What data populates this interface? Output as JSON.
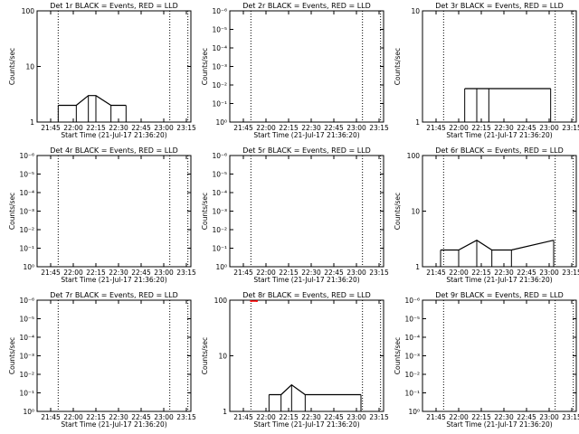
{
  "colors": {
    "events": "#000000",
    "lld": "#ff0000",
    "background": "#ffffff"
  },
  "chart_data": [
    {
      "type": "line",
      "title": "Det 1r BLACK = Events, RED = LLD",
      "xlabel": "Start Time (21-Jul-17 21:36:20)",
      "ylabel": "Counts/sec",
      "yscale": "log",
      "ylim": [
        1,
        100
      ],
      "ytick_labels": [
        "1",
        "10",
        "100"
      ],
      "xtick_labels": [
        "21:45",
        "22:00",
        "22:15",
        "22:30",
        "22:45",
        "23:00",
        "23:15"
      ],
      "xlim": [
        "21:36",
        "23:18"
      ],
      "dotted_vlines": [
        "21:50",
        "23:04",
        "23:16"
      ],
      "events": [
        {
          "x": "21:50",
          "y": 2
        },
        {
          "x": "22:02",
          "y": 2
        },
        {
          "x": "22:10",
          "y": 3
        },
        {
          "x": "22:15",
          "y": 3
        },
        {
          "x": "22:25",
          "y": 2
        },
        {
          "x": "22:35",
          "y": 2
        }
      ],
      "lld": []
    },
    {
      "type": "line",
      "title": "Det 2r BLACK = Events, RED = LLD",
      "xlabel": "Start Time (21-Jul-17 21:36:20)",
      "ylabel": "Counts/sec",
      "yscale": "log",
      "ylim": [
        1,
        1000000
      ],
      "ytick_labels": [
        "10⁰",
        "10⁻¹",
        "10⁻²",
        "10⁻³",
        "10⁻⁴",
        "10⁻⁵",
        "10⁻⁶"
      ],
      "xtick_labels": [
        "21:45",
        "22:00",
        "22:15",
        "22:30",
        "22:45",
        "23:00",
        "23:15"
      ],
      "xlim": [
        "21:36",
        "23:18"
      ],
      "dotted_vlines": [
        "21:50",
        "23:04",
        "23:16"
      ],
      "events": [],
      "lld": []
    },
    {
      "type": "line",
      "title": "Det 3r BLACK = Events, RED = LLD",
      "xlabel": "Start Time (21-Jul-17 21:36:20)",
      "ylabel": "Counts/sec",
      "yscale": "log",
      "ylim": [
        1,
        10
      ],
      "ytick_labels": [
        "1",
        "10"
      ],
      "xtick_labels": [
        "21:45",
        "22:00",
        "22:15",
        "22:30",
        "22:45",
        "23:00",
        "23:15"
      ],
      "xlim": [
        "21:36",
        "23:18"
      ],
      "dotted_vlines": [
        "21:50",
        "23:04",
        "23:16"
      ],
      "events": [
        {
          "x": "22:04",
          "y": 2
        },
        {
          "x": "22:12",
          "y": 2
        },
        {
          "x": "22:20",
          "y": 2
        },
        {
          "x": "23:01",
          "y": 2
        }
      ],
      "lld": []
    },
    {
      "type": "line",
      "title": "Det 4r BLACK = Events, RED = LLD",
      "xlabel": "Start Time (21-Jul-17 21:36:20)",
      "ylabel": "Counts/sec",
      "yscale": "log",
      "ylim": [
        1,
        1000000
      ],
      "ytick_labels": [
        "10⁰",
        "10⁻¹",
        "10⁻²",
        "10⁻³",
        "10⁻⁴",
        "10⁻⁵",
        "10⁻⁶"
      ],
      "xtick_labels": [
        "21:45",
        "22:00",
        "22:15",
        "22:30",
        "22:45",
        "23:00",
        "23:15"
      ],
      "xlim": [
        "21:36",
        "23:18"
      ],
      "dotted_vlines": [
        "21:50",
        "23:04",
        "23:16"
      ],
      "events": [],
      "lld": []
    },
    {
      "type": "line",
      "title": "Det 5r BLACK = Events, RED = LLD",
      "xlabel": "Start Time (21-Jul-17 21:36:20)",
      "ylabel": "Counts/sec",
      "yscale": "log",
      "ylim": [
        1,
        1000000
      ],
      "ytick_labels": [
        "10⁰",
        "10⁻¹",
        "10⁻²",
        "10⁻³",
        "10⁻⁴",
        "10⁻⁵",
        "10⁻⁶"
      ],
      "xtick_labels": [
        "21:45",
        "22:00",
        "22:15",
        "22:30",
        "22:45",
        "23:00",
        "23:15"
      ],
      "xlim": [
        "21:36",
        "23:18"
      ],
      "dotted_vlines": [
        "21:50",
        "23:04",
        "23:16"
      ],
      "events": [],
      "lld": []
    },
    {
      "type": "line",
      "title": "Det 6r BLACK = Events, RED = LLD",
      "xlabel": "Start Time (21-Jul-17 21:36:20)",
      "ylabel": "Counts/sec",
      "yscale": "log",
      "ylim": [
        1,
        100
      ],
      "ytick_labels": [
        "1",
        "10",
        "100"
      ],
      "xtick_labels": [
        "21:45",
        "22:00",
        "22:15",
        "22:30",
        "22:45",
        "23:00",
        "23:15"
      ],
      "xlim": [
        "21:36",
        "23:18"
      ],
      "dotted_vlines": [
        "21:50",
        "23:04",
        "23:16"
      ],
      "events": [
        {
          "x": "21:48",
          "y": 2
        },
        {
          "x": "22:00",
          "y": 2
        },
        {
          "x": "22:12",
          "y": 3
        },
        {
          "x": "22:22",
          "y": 2
        },
        {
          "x": "22:35",
          "y": 2
        },
        {
          "x": "23:03",
          "y": 3
        }
      ],
      "lld": []
    },
    {
      "type": "line",
      "title": "Det 7r BLACK = Events, RED = LLD",
      "xlabel": "Start Time (21-Jul-17 21:36:20)",
      "ylabel": "Counts/sec",
      "yscale": "log",
      "ylim": [
        1,
        1000000
      ],
      "ytick_labels": [
        "10⁰",
        "10⁻¹",
        "10⁻²",
        "10⁻³",
        "10⁻⁴",
        "10⁻⁵",
        "10⁻⁶"
      ],
      "xtick_labels": [
        "21:45",
        "22:00",
        "22:15",
        "22:30",
        "22:45",
        "23:00",
        "23:15"
      ],
      "xlim": [
        "21:36",
        "23:18"
      ],
      "dotted_vlines": [
        "21:50",
        "23:04",
        "23:16"
      ],
      "events": [],
      "lld": []
    },
    {
      "type": "line",
      "title": "Det 8r BLACK = Events, RED = LLD",
      "xlabel": "Start Time (21-Jul-17 21:36:20)",
      "ylabel": "Counts/sec",
      "yscale": "log",
      "ylim": [
        1,
        100
      ],
      "ytick_labels": [
        "1",
        "10",
        "100"
      ],
      "xtick_labels": [
        "21:45",
        "22:00",
        "22:15",
        "22:30",
        "22:45",
        "23:00",
        "23:15"
      ],
      "xlim": [
        "21:36",
        "23:18"
      ],
      "dotted_vlines": [
        "21:50",
        "23:04",
        "23:16"
      ],
      "events": [
        {
          "x": "22:02",
          "y": 2
        },
        {
          "x": "22:10",
          "y": 2
        },
        {
          "x": "22:17",
          "y": 3
        },
        {
          "x": "22:26",
          "y": 2
        },
        {
          "x": "23:03",
          "y": 2
        }
      ],
      "lld": [
        {
          "x": "21:50",
          "y": 100
        },
        {
          "x": "21:54",
          "y": 100
        }
      ]
    },
    {
      "type": "line",
      "title": "Det 9r BLACK = Events, RED = LLD",
      "xlabel": "Start Time (21-Jul-17 21:36:20)",
      "ylabel": "Counts/sec",
      "yscale": "log",
      "ylim": [
        1,
        1000000
      ],
      "ytick_labels": [
        "10⁰",
        "10⁻¹",
        "10⁻²",
        "10⁻³",
        "10⁻⁴",
        "10⁻⁵",
        "10⁻⁶"
      ],
      "xtick_labels": [
        "21:45",
        "22:00",
        "22:15",
        "22:30",
        "22:45",
        "23:00",
        "23:15"
      ],
      "xlim": [
        "21:36",
        "23:18"
      ],
      "dotted_vlines": [
        "21:50",
        "23:04",
        "23:16"
      ],
      "events": [],
      "lld": []
    }
  ]
}
